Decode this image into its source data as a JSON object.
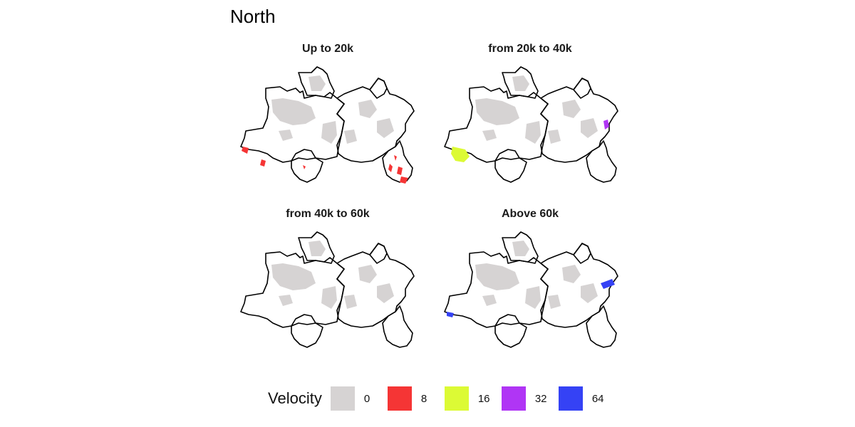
{
  "title": "North",
  "panels": [
    {
      "title": "Up to 20k",
      "highlight": "red"
    },
    {
      "title": "from 20k to 40k",
      "highlight": "yellow-purple"
    },
    {
      "title": "from 40k to 60k",
      "highlight": "none"
    },
    {
      "title": "Above 60k",
      "highlight": "blue"
    }
  ],
  "legend": {
    "title": "Velocity",
    "items": [
      {
        "label": "0",
        "color": "#d6d3d3"
      },
      {
        "label": "8",
        "color": "#f53535"
      },
      {
        "label": "16",
        "color": "#dcfa35"
      },
      {
        "label": "32",
        "color": "#b035f5"
      },
      {
        "label": "64",
        "color": "#3542f5"
      }
    ]
  }
}
